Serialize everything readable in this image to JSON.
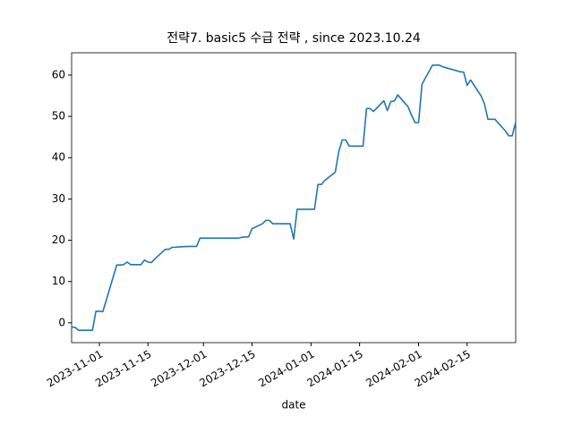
{
  "chart_data": {
    "type": "line",
    "title": "전략7. basic5 수급 전략 , since 2023.10.24",
    "xlabel": "date",
    "x": [
      "2023-10-24",
      "2023-10-25",
      "2023-10-26",
      "2023-10-27",
      "2023-10-30",
      "2023-10-31",
      "2023-11-01",
      "2023-11-02",
      "2023-11-06",
      "2023-11-07",
      "2023-11-08",
      "2023-11-09",
      "2023-11-10",
      "2023-11-13",
      "2023-11-14",
      "2023-11-15",
      "2023-11-16",
      "2023-11-17",
      "2023-11-20",
      "2023-11-21",
      "2023-11-22",
      "2023-11-23",
      "2023-11-24",
      "2023-11-27",
      "2023-11-28",
      "2023-11-29",
      "2023-11-30",
      "2023-12-01",
      "2023-12-04",
      "2023-12-05",
      "2023-12-06",
      "2023-12-07",
      "2023-12-08",
      "2023-12-11",
      "2023-12-12",
      "2023-12-13",
      "2023-12-14",
      "2023-12-15",
      "2023-12-18",
      "2023-12-19",
      "2023-12-20",
      "2023-12-21",
      "2023-12-22",
      "2023-12-26",
      "2023-12-27",
      "2023-12-28",
      "2024-01-02",
      "2024-01-03",
      "2024-01-04",
      "2024-01-05",
      "2024-01-08",
      "2024-01-09",
      "2024-01-10",
      "2024-01-11",
      "2024-01-12",
      "2024-01-15",
      "2024-01-16",
      "2024-01-17",
      "2024-01-18",
      "2024-01-19",
      "2024-01-22",
      "2024-01-23",
      "2024-01-24",
      "2024-01-25",
      "2024-01-26",
      "2024-01-29",
      "2024-01-30",
      "2024-01-31",
      "2024-02-01",
      "2024-02-02",
      "2024-02-05",
      "2024-02-06",
      "2024-02-07",
      "2024-02-08",
      "2024-02-13",
      "2024-02-14",
      "2024-02-15",
      "2024-02-16",
      "2024-02-19",
      "2024-02-20",
      "2024-02-21",
      "2024-02-22",
      "2024-02-23",
      "2024-02-26",
      "2024-02-27",
      "2024-02-28",
      "2024-02-29"
    ],
    "series": [
      {
        "color": "#1f77b4",
        "values": [
          -1.0,
          -1.1,
          -1.8,
          -1.8,
          -1.8,
          2.8,
          2.8,
          2.7,
          14.0,
          14.0,
          14.1,
          14.7,
          14.1,
          14.1,
          15.2,
          14.7,
          14.6,
          15.5,
          17.8,
          17.8,
          18.3,
          18.3,
          18.4,
          18.5,
          18.5,
          18.5,
          20.5,
          20.5,
          20.5,
          20.5,
          20.5,
          20.5,
          20.5,
          20.5,
          20.7,
          20.8,
          20.8,
          22.8,
          24.0,
          24.8,
          24.8,
          24.0,
          24.0,
          24.0,
          20.3,
          27.5,
          27.5,
          33.5,
          33.5,
          34.5,
          36.5,
          41.5,
          44.3,
          44.3,
          42.8,
          42.8,
          42.8,
          51.9,
          51.9,
          51.2,
          53.8,
          51.4,
          53.6,
          53.7,
          55.2,
          52.3,
          50.2,
          48.5,
          48.5,
          57.8,
          62.4,
          62.4,
          62.4,
          62.0,
          60.8,
          60.7,
          57.5,
          58.8,
          55.0,
          53.0,
          49.3,
          49.3,
          49.3,
          46.5,
          45.3,
          45.3,
          48.6
        ]
      }
    ],
    "xlim": [
      "2023-10-24",
      "2024-02-29"
    ],
    "xticks": [
      "2023-11-01",
      "2023-11-15",
      "2023-12-01",
      "2023-12-15",
      "2024-01-01",
      "2024-01-15",
      "2024-02-01",
      "2024-02-15"
    ],
    "ylim": [
      -4.8,
      65.4
    ],
    "yticks": [
      0,
      10,
      20,
      30,
      40,
      50,
      60
    ]
  }
}
